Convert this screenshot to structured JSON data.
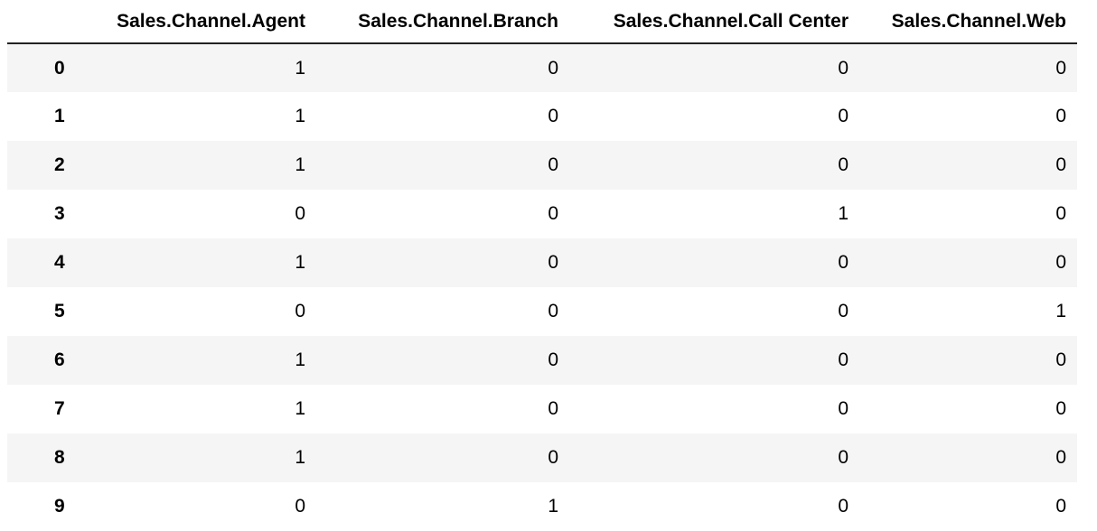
{
  "table": {
    "columns": [
      "Sales.Channel.Agent",
      "Sales.Channel.Branch",
      "Sales.Channel.Call Center",
      "Sales.Channel.Web"
    ],
    "rows": [
      {
        "index": "0",
        "values": [
          "1",
          "0",
          "0",
          "0"
        ]
      },
      {
        "index": "1",
        "values": [
          "1",
          "0",
          "0",
          "0"
        ]
      },
      {
        "index": "2",
        "values": [
          "1",
          "0",
          "0",
          "0"
        ]
      },
      {
        "index": "3",
        "values": [
          "0",
          "0",
          "1",
          "0"
        ]
      },
      {
        "index": "4",
        "values": [
          "1",
          "0",
          "0",
          "0"
        ]
      },
      {
        "index": "5",
        "values": [
          "0",
          "0",
          "0",
          "1"
        ]
      },
      {
        "index": "6",
        "values": [
          "1",
          "0",
          "0",
          "0"
        ]
      },
      {
        "index": "7",
        "values": [
          "1",
          "0",
          "0",
          "0"
        ]
      },
      {
        "index": "8",
        "values": [
          "1",
          "0",
          "0",
          "0"
        ]
      },
      {
        "index": "9",
        "values": [
          "0",
          "1",
          "0",
          "0"
        ]
      }
    ]
  },
  "colors": {
    "stripe": "#f5f5f5",
    "header_rule": "#222222",
    "text": "#000000"
  }
}
